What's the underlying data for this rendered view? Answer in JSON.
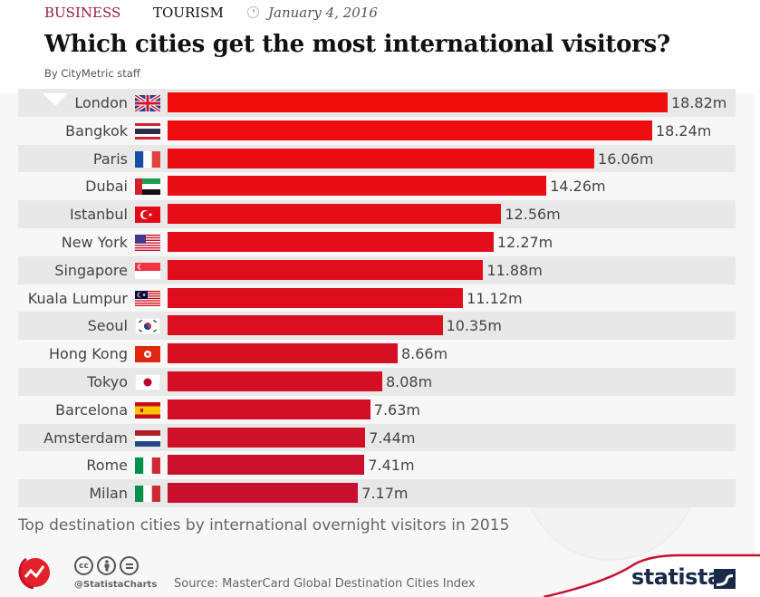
{
  "header": {
    "category_1": "BUSINESS",
    "category_2": "TOURISM",
    "date": "January 4, 2016",
    "title": "Which cities get the most international visitors?",
    "byline": "By CityMetric staff"
  },
  "footer": {
    "handle": "@StatistaCharts",
    "source": "Source: MasterCard Global Destination Cities Index",
    "brand": "statista",
    "cc_icons": [
      "cc",
      "by",
      "nd"
    ]
  },
  "colors": {
    "bar_top": "#f20d0d",
    "bar_bottom": "#c8102e",
    "accent": "#9b1b3c",
    "stripe": "#e8e8e8",
    "background": "#f7f7f7"
  },
  "chart_data": {
    "type": "bar",
    "orientation": "horizontal",
    "title": "Top destination cities by international overnight visitors in 2015",
    "xlabel": "",
    "ylabel": "",
    "unit": "m",
    "xlim": [
      0,
      20
    ],
    "grid": false,
    "categories": [
      "London",
      "Bangkok",
      "Paris",
      "Dubai",
      "Istanbul",
      "New York",
      "Singapore",
      "Kuala Lumpur",
      "Seoul",
      "Hong Kong",
      "Tokyo",
      "Barcelona",
      "Amsterdam",
      "Rome",
      "Milan"
    ],
    "flags": [
      "uk",
      "thailand",
      "france",
      "uae",
      "turkey",
      "usa",
      "singapore",
      "malaysia",
      "south-korea",
      "hong-kong",
      "japan",
      "spain",
      "netherlands",
      "italy",
      "italy"
    ],
    "values": [
      18.82,
      18.24,
      16.06,
      14.26,
      12.56,
      12.27,
      11.88,
      11.12,
      10.35,
      8.66,
      8.08,
      7.63,
      7.44,
      7.41,
      7.17
    ],
    "labels": [
      "18.82m",
      "18.24m",
      "16.06m",
      "14.26m",
      "12.56m",
      "12.27m",
      "11.88m",
      "11.12m",
      "10.35m",
      "8.66m",
      "8.08m",
      "7.63m",
      "7.44m",
      "7.41m",
      "7.17m"
    ]
  }
}
